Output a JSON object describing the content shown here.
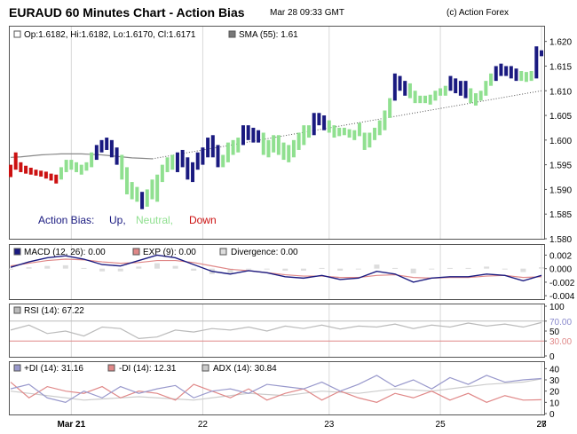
{
  "header": {
    "title": "EURAUD 60 Minutes Chart - Action Bias",
    "datetime": "Mar 28 09:33 GMT",
    "copyright": "(c) Action Forex"
  },
  "colors": {
    "up": "#1a1a80",
    "neutral": "#90e090",
    "down": "#cc1111",
    "sma": "#888888",
    "dots": "#555555",
    "macd": "#1a1a80",
    "exp": "#e08888",
    "divergence": "#dddddd",
    "rsi": "#bbbbbb",
    "plus_di": "#9999cc",
    "minus_di": "#e08888",
    "adx": "#cccccc",
    "level_70": "#8888cc",
    "level_30": "#e08888"
  },
  "chart_data": [
    {
      "type": "ohlc",
      "name": "price",
      "legend_ohlc": "Op:1.6182, Hi:1.6182, Lo:1.6170, Cl:1.6171",
      "legend_sma": "SMA (55): 1.61",
      "bias_label": "Action Bias:",
      "bias_up": "Up,",
      "bias_neutral": "Neutral,",
      "bias_down": "Down",
      "ylim": [
        1.58,
        1.623
      ],
      "yticks": [
        "1.620",
        "1.615",
        "1.610",
        "1.605",
        "1.600",
        "1.595",
        "1.590",
        "1.585",
        "1.580"
      ],
      "x_labels": [
        "Mar 21",
        "22",
        "23",
        "25",
        "27",
        "28"
      ],
      "x_label_index": [
        12,
        38,
        63,
        85,
        116,
        142
      ],
      "segments": [
        {
          "bias": "down",
          "bars": [
            [
              1.5935,
              1.595,
              1.5925,
              1.593
            ],
            [
              1.596,
              1.5975,
              1.594,
              1.595
            ],
            [
              1.5945,
              1.5955,
              1.5935,
              1.594
            ],
            [
              1.594,
              1.5948,
              1.5932,
              1.5938
            ],
            [
              1.5938,
              1.5944,
              1.593,
              1.5934
            ],
            [
              1.5934,
              1.594,
              1.5928,
              1.5932
            ],
            [
              1.5932,
              1.5938,
              1.5926,
              1.593
            ],
            [
              1.593,
              1.5936,
              1.5922,
              1.5926
            ],
            [
              1.5926,
              1.5932,
              1.5918,
              1.5922
            ],
            [
              1.5922,
              1.593,
              1.5912,
              1.592
            ]
          ]
        },
        {
          "bias": "neutral",
          "bars": [
            [
              1.5925,
              1.5945,
              1.592,
              1.594
            ],
            [
              1.594,
              1.596,
              1.5935,
              1.595
            ],
            [
              1.595,
              1.596,
              1.594,
              1.5945
            ],
            [
              1.5945,
              1.5955,
              1.5935,
              1.594
            ],
            [
              1.594,
              1.595,
              1.593,
              1.5945
            ],
            [
              1.5945,
              1.5955,
              1.5938,
              1.595
            ],
            [
              1.595,
              1.5975,
              1.5945,
              1.597
            ]
          ]
        },
        {
          "bias": "up",
          "bars": [
            [
              1.597,
              1.599,
              1.596,
              1.5985
            ],
            [
              1.5985,
              1.6,
              1.5975,
              1.599
            ],
            [
              1.599,
              1.6005,
              1.598,
              1.5995
            ],
            [
              1.5995,
              1.6,
              1.5965,
              1.597
            ],
            [
              1.597,
              1.5985,
              1.595,
              1.596
            ]
          ]
        },
        {
          "bias": "neutral",
          "bars": [
            [
              1.596,
              1.597,
              1.592,
              1.593
            ],
            [
              1.593,
              1.5945,
              1.589,
              1.59
            ],
            [
              1.59,
              1.5915,
              1.588,
              1.589
            ],
            [
              1.589,
              1.5905,
              1.5875,
              1.5885
            ]
          ]
        },
        {
          "bias": "up",
          "bars": [
            [
              1.5885,
              1.5895,
              1.586,
              1.587
            ]
          ]
        },
        {
          "bias": "neutral",
          "bars": [
            [
              1.587,
              1.59,
              1.5865,
              1.5895
            ],
            [
              1.5895,
              1.592,
              1.588,
              1.5885
            ],
            [
              1.5885,
              1.593,
              1.5875,
              1.5925
            ],
            [
              1.5925,
              1.595,
              1.5915,
              1.5945
            ],
            [
              1.5945,
              1.5965,
              1.5935,
              1.596
            ],
            [
              1.596,
              1.597,
              1.594,
              1.595
            ]
          ]
        },
        {
          "bias": "up",
          "bars": [
            [
              1.595,
              1.5975,
              1.5935,
              1.5965
            ],
            [
              1.5965,
              1.598,
              1.5945,
              1.5955
            ],
            [
              1.5955,
              1.5965,
              1.592,
              1.593
            ],
            [
              1.593,
              1.5955,
              1.5915,
              1.595
            ],
            [
              1.595,
              1.5975,
              1.594,
              1.5965
            ],
            [
              1.5965,
              1.5985,
              1.595,
              1.5975
            ],
            [
              1.5975,
              1.6005,
              1.5965,
              1.5995
            ],
            [
              1.5995,
              1.601,
              1.5965,
              1.5975
            ],
            [
              1.5975,
              1.599,
              1.5945,
              1.5955
            ]
          ]
        },
        {
          "bias": "neutral",
          "bars": [
            [
              1.5955,
              1.597,
              1.5945,
              1.5965
            ],
            [
              1.5965,
              1.5995,
              1.5955,
              1.5985
            ],
            [
              1.5985,
              1.6,
              1.597,
              1.599
            ],
            [
              1.599,
              1.6005,
              1.5975,
              1.5995
            ]
          ]
        },
        {
          "bias": "up",
          "bars": [
            [
              1.5995,
              1.603,
              1.599,
              1.602
            ],
            [
              1.602,
              1.603,
              1.6,
              1.601
            ],
            [
              1.601,
              1.6025,
              1.5995,
              1.6015
            ],
            [
              1.6015,
              1.602,
              1.5995,
              1.6005
            ]
          ]
        },
        {
          "bias": "neutral",
          "bars": [
            [
              1.6005,
              1.6015,
              1.597,
              1.598
            ],
            [
              1.598,
              1.6,
              1.5965,
              1.599
            ],
            [
              1.599,
              1.601,
              1.5975,
              1.6
            ],
            [
              1.6,
              1.601,
              1.597,
              1.598
            ],
            [
              1.598,
              1.5995,
              1.596,
              1.597
            ],
            [
              1.597,
              1.599,
              1.5955,
              1.598
            ],
            [
              1.598,
              1.6,
              1.5965,
              1.599
            ],
            [
              1.599,
              1.6015,
              1.598,
              1.6005
            ],
            [
              1.6005,
              1.603,
              1.599,
              1.602
            ],
            [
              1.602,
              1.603,
              1.6005,
              1.6015
            ]
          ]
        },
        {
          "bias": "up",
          "bars": [
            [
              1.6015,
              1.6055,
              1.601,
              1.6045
            ],
            [
              1.6045,
              1.6055,
              1.603,
              1.604
            ],
            [
              1.604,
              1.605,
              1.602,
              1.6035
            ]
          ]
        },
        {
          "bias": "neutral",
          "bars": [
            [
              1.6035,
              1.604,
              1.6015,
              1.602
            ],
            [
              1.602,
              1.603,
              1.6005,
              1.6015
            ],
            [
              1.6015,
              1.6025,
              1.6008,
              1.6018
            ],
            [
              1.6018,
              1.6025,
              1.601,
              1.6015
            ],
            [
              1.6015,
              1.6022,
              1.6005,
              1.6012
            ],
            [
              1.6012,
              1.602,
              1.6,
              1.6015
            ],
            [
              1.6015,
              1.6035,
              1.6008,
              1.603
            ]
          ]
        },
        {
          "bias": "neutral",
          "bars": [
            [
              1.6,
              1.6015,
              1.598,
              1.599
            ]
          ]
        },
        {
          "bias": "neutral",
          "bars": [
            [
              1.599,
              1.6015,
              1.5985,
              1.601
            ],
            [
              1.601,
              1.6025,
              1.6,
              1.602
            ],
            [
              1.602,
              1.604,
              1.601,
              1.603
            ],
            [
              1.603,
              1.606,
              1.602,
              1.6055
            ],
            [
              1.6055,
              1.6085,
              1.6045,
              1.608
            ]
          ]
        },
        {
          "bias": "up",
          "bars": [
            [
              1.608,
              1.6135,
              1.608,
              1.6125
            ],
            [
              1.6125,
              1.613,
              1.61,
              1.611
            ],
            [
              1.611,
              1.612,
              1.609,
              1.61
            ]
          ]
        },
        {
          "bias": "neutral",
          "bars": [
            [
              1.61,
              1.6115,
              1.6085,
              1.609
            ],
            [
              1.609,
              1.61,
              1.6075,
              1.608
            ],
            [
              1.608,
              1.609,
              1.6075,
              1.6082
            ],
            [
              1.6082,
              1.609,
              1.6075,
              1.608
            ],
            [
              1.608,
              1.6092,
              1.6072,
              1.6085
            ],
            [
              1.6085,
              1.61,
              1.608,
              1.6095
            ],
            [
              1.6095,
              1.6105,
              1.609,
              1.61
            ],
            [
              1.61,
              1.611,
              1.609,
              1.6105
            ]
          ]
        },
        {
          "bias": "up",
          "bars": [
            [
              1.6105,
              1.613,
              1.61,
              1.612
            ],
            [
              1.612,
              1.6125,
              1.6095,
              1.6105
            ],
            [
              1.6105,
              1.612,
              1.609,
              1.611
            ],
            [
              1.611,
              1.612,
              1.6085,
              1.6095
            ]
          ]
        },
        {
          "bias": "neutral",
          "bars": [
            [
              1.6095,
              1.6105,
              1.6075,
              1.608
            ],
            [
              1.608,
              1.6095,
              1.607,
              1.6085
            ],
            [
              1.6085,
              1.61,
              1.608,
              1.6095
            ],
            [
              1.6095,
              1.612,
              1.609,
              1.6115
            ],
            [
              1.6115,
              1.6135,
              1.611,
              1.613
            ]
          ]
        },
        {
          "bias": "up",
          "bars": [
            [
              1.613,
              1.615,
              1.612,
              1.6145
            ],
            [
              1.6145,
              1.6155,
              1.613,
              1.614
            ],
            [
              1.614,
              1.615,
              1.613,
              1.6145
            ],
            [
              1.6145,
              1.615,
              1.6125,
              1.6135
            ],
            [
              1.6135,
              1.6145,
              1.612,
              1.613
            ]
          ]
        },
        {
          "bias": "neutral",
          "bars": [
            [
              1.613,
              1.614,
              1.612,
              1.6125
            ],
            [
              1.6125,
              1.6138,
              1.6118,
              1.613
            ],
            [
              1.613,
              1.614,
              1.612,
              1.6132
            ]
          ]
        },
        {
          "bias": "up",
          "bars": [
            [
              1.6132,
              1.619,
              1.6125,
              1.618
            ],
            [
              1.6182,
              1.6182,
              1.617,
              1.6171
            ]
          ]
        }
      ],
      "sma": [
        1.5965,
        1.5966,
        1.5968,
        1.597,
        1.5971,
        1.5972,
        1.5972,
        1.5972,
        1.5971,
        1.597,
        1.5968,
        1.5966,
        1.5964,
        1.5963,
        1.5962
      ]
    },
    {
      "type": "line",
      "name": "macd",
      "legend": [
        "MACD (12, 26): 0.00",
        "EXP (9): 0.00",
        "Divergence: 0.00"
      ],
      "ylim": [
        -0.0045,
        0.0035
      ],
      "yticks": [
        "0.002",
        "0.000",
        "-0.002",
        "-0.004"
      ],
      "macd": [
        0.0002,
        0.001,
        0.0016,
        0.0019,
        0.0014,
        0.0006,
        0.0004,
        0.0012,
        0.002,
        0.0016,
        0.0006,
        -0.0004,
        -0.0008,
        -0.0003,
        -0.0006,
        -0.0012,
        -0.0014,
        -0.001,
        -0.0016,
        -0.0014,
        -0.0004,
        -0.0008,
        -0.002,
        -0.0014,
        -0.0012,
        -0.0012,
        -0.0008,
        -0.001,
        -0.0018,
        -0.001
      ],
      "exp": [
        0.0004,
        0.0008,
        0.0012,
        0.0014,
        0.0013,
        0.001,
        0.0008,
        0.0009,
        0.0012,
        0.0012,
        0.0009,
        0.0004,
        -0.0001,
        -0.0003,
        -0.0006,
        -0.0009,
        -0.0011,
        -0.0011,
        -0.0013,
        -0.0013,
        -0.001,
        -0.0009,
        -0.0013,
        -0.0014,
        -0.0013,
        -0.0013,
        -0.0011,
        -0.001,
        -0.0013,
        -0.0012
      ],
      "divergence": [
        0.0,
        0.0002,
        0.0004,
        0.0005,
        0.0001,
        -0.0004,
        -0.0004,
        0.0003,
        0.0008,
        0.0004,
        -0.0003,
        -0.0008,
        -0.0007,
        0.0,
        0.0,
        -0.0003,
        -0.0003,
        0.0001,
        -0.0003,
        -0.0001,
        0.0006,
        0.0001,
        -0.0007,
        0.0,
        0.0001,
        0.0001,
        0.0003,
        0.0,
        -0.0005,
        0.0002
      ]
    },
    {
      "type": "line",
      "name": "rsi",
      "legend": "RSI (14): 67.22",
      "ylim": [
        0,
        100
      ],
      "yticks": [
        "100",
        "70.00",
        "50",
        "30.00",
        "0"
      ],
      "levels": [
        70,
        30
      ],
      "values": [
        52,
        62,
        45,
        50,
        40,
        58,
        55,
        35,
        38,
        52,
        48,
        55,
        52,
        58,
        50,
        60,
        55,
        62,
        54,
        60,
        58,
        64,
        55,
        62,
        58,
        66,
        60,
        64,
        58,
        67.22
      ]
    },
    {
      "type": "line",
      "name": "dmi",
      "legend": [
        "+DI (14): 31.16",
        "-DI (14): 12.31",
        "ADX (14): 30.84"
      ],
      "ylim": [
        0,
        45
      ],
      "yticks": [
        "40",
        "30",
        "20",
        "10",
        "0"
      ],
      "plus_di": [
        22,
        26,
        14,
        10,
        20,
        14,
        24,
        18,
        22,
        25,
        14,
        20,
        22,
        18,
        26,
        24,
        22,
        28,
        20,
        26,
        34,
        24,
        30,
        22,
        32,
        26,
        34,
        28,
        30,
        31.16
      ],
      "minus_di": [
        28,
        14,
        24,
        20,
        18,
        24,
        14,
        20,
        18,
        12,
        26,
        20,
        14,
        22,
        12,
        18,
        22,
        12,
        20,
        14,
        10,
        18,
        14,
        20,
        12,
        18,
        10,
        16,
        12,
        12.31
      ],
      "adx": [
        20,
        18,
        16,
        14,
        12,
        13,
        14,
        15,
        14,
        13,
        12,
        14,
        16,
        18,
        17,
        16,
        18,
        20,
        19,
        18,
        20,
        22,
        21,
        20,
        22,
        24,
        26,
        27,
        28,
        30.84
      ]
    }
  ]
}
